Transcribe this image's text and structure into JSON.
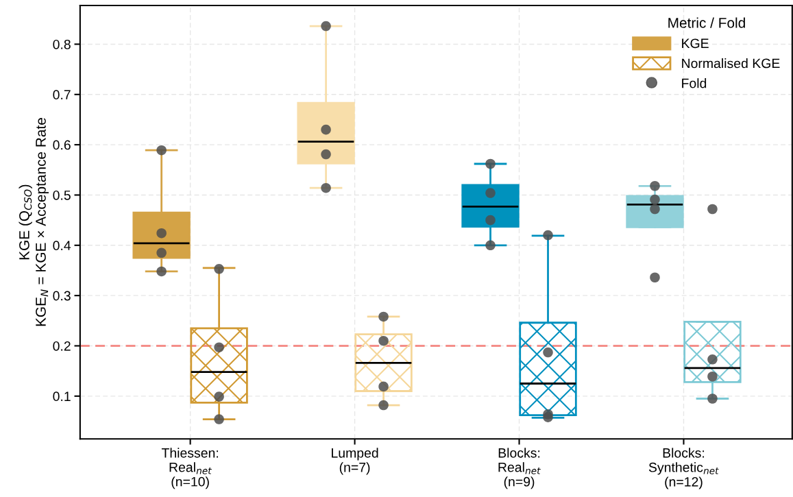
{
  "chart_data": {
    "type": "box",
    "ylabel": "KGE (Q$_{CSO}$)\nKGE$_{N}$ = KGE × Acceptance Rate",
    "legend_title": "Metric / Fold",
    "categories": [
      "Thiessen:\nReal$_{net}$\n(n=10)",
      "Lumped\n(n=7)",
      "Blocks:\nReal$_{net}$\n(n=9)",
      "Blocks:\nSynthetic$_{net}$\n(n=12)"
    ],
    "ylim": [
      0.015,
      0.877
    ],
    "yticks": [
      0.1,
      0.2,
      0.3,
      0.4,
      0.5,
      0.6,
      0.7,
      0.8
    ],
    "grid": true,
    "legend": "top right",
    "ref_lines": [
      {
        "axis": "y",
        "value": 0.2,
        "color": "#f4837d",
        "line_style": "dashed"
      }
    ],
    "series": [
      {
        "name": "KGE",
        "colors": [
          "#d4a346",
          "#f8deaa",
          "#0092bd",
          "#91d1da"
        ],
        "boxes": [
          {
            "low": 0.348,
            "q1": 0.375,
            "median": 0.404,
            "q3": 0.465,
            "high": 0.589
          },
          {
            "low": 0.514,
            "q1": 0.563,
            "median": 0.606,
            "q3": 0.683,
            "high": 0.836
          },
          {
            "low": 0.4,
            "q1": 0.437,
            "median": 0.477,
            "q3": 0.52,
            "high": 0.562
          },
          {
            "low": 0.436,
            "q1": 0.436,
            "median": 0.481,
            "q3": 0.498,
            "high": 0.518
          }
        ]
      },
      {
        "name": "Normalised KGE",
        "colors": [
          "#d19a33",
          "#f5d699",
          "#0090bf",
          "#7cc9d5"
        ],
        "boxes": [
          {
            "low": 0.054,
            "q1": 0.087,
            "median": 0.148,
            "q3": 0.235,
            "high": 0.355
          },
          {
            "low": 0.082,
            "q1": 0.11,
            "median": 0.166,
            "q3": 0.223,
            "high": 0.258
          },
          {
            "low": 0.057,
            "q1": 0.062,
            "median": 0.125,
            "q3": 0.246,
            "high": 0.419
          },
          {
            "low": 0.095,
            "q1": 0.128,
            "median": 0.156,
            "q3": 0.248,
            "high": 0.248
          }
        ]
      },
      {
        "name": "Fold",
        "type": "scatter",
        "color": "#4d4d4d",
        "marker": "circle",
        "x": [
          "Thiessen:\nReal$_{net}$\n(n=10)",
          "Thiessen:\nReal$_{net}$\n(n=10)",
          "Thiessen:\nReal$_{net}$\n(n=10)",
          "Thiessen:\nReal$_{net}$\n(n=10)",
          "Lumped\n(n=7)",
          "Lumped\n(n=7)",
          "Lumped\n(n=7)",
          "Lumped\n(n=7)",
          "Blocks:\nReal$_{net}$\n(n=9)",
          "Blocks:\nReal$_{net}$\n(n=9)",
          "Blocks:\nReal$_{net}$\n(n=9)",
          "Blocks:\nReal$_{net}$\n(n=9)",
          "Blocks:\nSynthetic$_{net}$\n(n=12)",
          "Blocks:\nSynthetic$_{net}$\n(n=12)",
          "Blocks:\nSynthetic$_{net}$\n(n=12)",
          "Blocks:\nSynthetic$_{net}$\n(n=12)"
        ],
        "values": [
          0.589,
          0.424,
          0.385,
          0.348,
          0.836,
          0.63,
          0.581,
          0.514,
          0.562,
          0.504,
          0.45,
          0.4,
          0.518,
          0.491,
          0.472,
          0.336
        ]
      },
      {
        "type": "scatter",
        "color": "#4d4d4d",
        "marker": "circle",
        "x": [
          "Thiessen:\nReal$_{net}$\n(n=10)",
          "Thiessen:\nReal$_{net}$\n(n=10)",
          "Thiessen:\nReal$_{net}$\n(n=10)",
          "Thiessen:\nReal$_{net}$\n(n=10)",
          "Lumped\n(n=7)",
          "Lumped\n(n=7)",
          "Lumped\n(n=7)",
          "Lumped\n(n=7)",
          "Blocks:\nReal$_{net}$\n(n=9)",
          "Blocks:\nReal$_{net}$\n(n=9)",
          "Blocks:\nReal$_{net}$\n(n=9)",
          "Blocks:\nReal$_{net}$\n(n=9)",
          "Blocks:\nSynthetic$_{net}$\n(n=12)",
          "Blocks:\nSynthetic$_{net}$\n(n=12)",
          "Blocks:\nSynthetic$_{net}$\n(n=12)",
          "Blocks:\nSynthetic$_{net}$\n(n=12)"
        ],
        "values": [
          0.353,
          0.197,
          0.099,
          0.054,
          0.258,
          0.21,
          0.119,
          0.082,
          0.42,
          0.187,
          0.064,
          0.058,
          0.472,
          0.173,
          0.139,
          0.095
        ]
      }
    ]
  }
}
